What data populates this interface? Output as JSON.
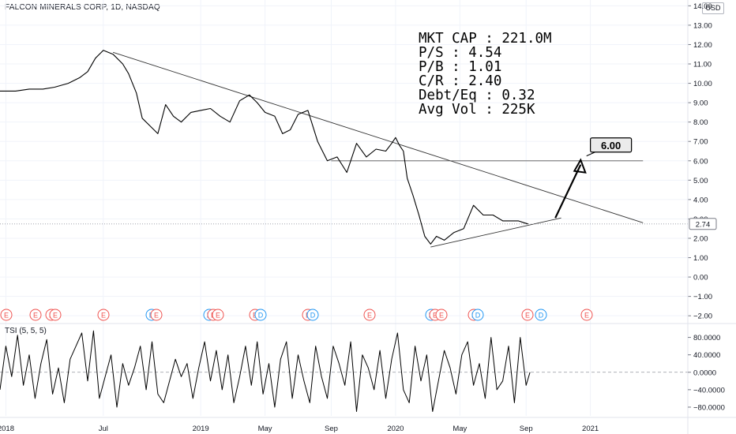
{
  "header": {
    "symbol_title": "FALCON MINERALS CORP, 1D, NASDAQ",
    "currency": "USD"
  },
  "stats": {
    "market_cap": "MKT CAP : 221.0M",
    "price_to_sales": "P/S :  4.54",
    "price_to_book": "P/B : 1.01",
    "current_ratio": "C/R : 2.40",
    "debt_to_equity": "Debt/Eq : 0.32",
    "avg_volume": "Avg Vol : 225K"
  },
  "target_label": "6.00",
  "last_price_label": "2.74",
  "events": {
    "earnings_marker": "E",
    "dividend_marker": "D"
  },
  "indicator": {
    "label": "TSI (5, 5, 5)"
  },
  "colors": {
    "price_line": "#000000",
    "grid": "#f0f3fa",
    "axis_text": "#131722",
    "earnings_red": "#ef5350",
    "dividend_blue": "#2196f3"
  },
  "chart_data": [
    {
      "type": "line",
      "title": "FALCON MINERALS CORP, 1D, NASDAQ",
      "y_scale": "linear",
      "ylim": [
        -2.4,
        14.3
      ],
      "y_ticks": [
        "14.00",
        "13.00",
        "12.00",
        "11.00",
        "10.00",
        "9.00",
        "8.00",
        "7.00",
        "6.00",
        "5.00",
        "4.00",
        "3.00",
        "2.00",
        "1.00",
        "0.00",
        "−1.00",
        "−2.00"
      ],
      "x_ticks": [
        "2018",
        "Jul",
        "2019",
        "May",
        "Sep",
        "2020",
        "May",
        "Sep",
        "2021"
      ],
      "x_tick_positions": [
        2018.0,
        2018.5,
        2019.0,
        2019.33,
        2019.67,
        2020.0,
        2020.33,
        2020.67,
        2021.0
      ],
      "xlim": [
        2017.97,
        2021.5
      ],
      "series": [
        {
          "x": [
            2017.97,
            2018.05,
            2018.12,
            2018.19,
            2018.25,
            2018.32,
            2018.38,
            2018.42,
            2018.46,
            2018.5,
            2018.55,
            2018.6,
            2018.63,
            2018.67,
            2018.7,
            2018.74,
            2018.78,
            2018.82,
            2018.86,
            2018.9,
            2018.95,
            2019.0,
            2019.05,
            2019.1,
            2019.15,
            2019.2,
            2019.25,
            2019.29,
            2019.33,
            2019.38,
            2019.42,
            2019.46,
            2019.5,
            2019.55,
            2019.6,
            2019.65,
            2019.7,
            2019.75,
            2019.8,
            2019.85,
            2019.9,
            2019.95,
            2019.98,
            2020.0,
            2020.02,
            2020.04,
            2020.06,
            2020.09,
            2020.12,
            2020.15,
            2020.18,
            2020.21,
            2020.25,
            2020.3,
            2020.35,
            2020.4,
            2020.45,
            2020.5,
            2020.55,
            2020.6,
            2020.63,
            2020.66,
            2020.68
          ],
          "y": [
            9.6,
            9.6,
            9.7,
            9.7,
            9.8,
            10.0,
            10.3,
            10.6,
            11.3,
            11.7,
            11.5,
            11.0,
            10.5,
            9.5,
            8.2,
            7.8,
            7.4,
            8.9,
            8.3,
            8.0,
            8.5,
            8.6,
            8.7,
            8.3,
            8.0,
            9.1,
            9.4,
            9.0,
            8.5,
            8.3,
            7.4,
            7.6,
            8.4,
            8.6,
            7.0,
            6.0,
            6.2,
            5.4,
            6.9,
            6.2,
            6.6,
            6.5,
            6.9,
            7.2,
            6.8,
            6.5,
            5.1,
            4.2,
            3.2,
            2.1,
            1.7,
            2.1,
            1.9,
            2.3,
            2.5,
            3.7,
            3.2,
            3.2,
            2.9,
            2.9,
            2.9,
            2.8,
            2.74
          ]
        }
      ],
      "annotations": {
        "target_price": 6.0,
        "last_price": 2.74,
        "target_label": "6.00",
        "last_price_label": "2.74"
      }
    },
    {
      "type": "line",
      "title": "TSI (5, 5, 5)",
      "ylim": [
        -100,
        110
      ],
      "y_ticks": [
        "80.0000",
        "40.0000",
        "0.0000",
        "−40.0000",
        "−80.0000"
      ],
      "series": [
        {
          "x": [
            2017.97,
            2018.0,
            2018.03,
            2018.06,
            2018.09,
            2018.12,
            2018.15,
            2018.18,
            2018.21,
            2018.24,
            2018.27,
            2018.3,
            2018.33,
            2018.36,
            2018.39,
            2018.42,
            2018.45,
            2018.48,
            2018.51,
            2018.54,
            2018.57,
            2018.6,
            2018.63,
            2018.66,
            2018.69,
            2018.72,
            2018.75,
            2018.78,
            2018.81,
            2018.84,
            2018.87,
            2018.9,
            2018.93,
            2018.96,
            2018.99,
            2019.02,
            2019.05,
            2019.08,
            2019.11,
            2019.14,
            2019.17,
            2019.2,
            2019.23,
            2019.26,
            2019.29,
            2019.32,
            2019.35,
            2019.38,
            2019.41,
            2019.44,
            2019.47,
            2019.5,
            2019.53,
            2019.56,
            2019.59,
            2019.62,
            2019.65,
            2019.68,
            2019.71,
            2019.74,
            2019.77,
            2019.8,
            2019.83,
            2019.86,
            2019.89,
            2019.92,
            2019.95,
            2019.98,
            2020.01,
            2020.04,
            2020.07,
            2020.1,
            2020.13,
            2020.16,
            2020.19,
            2020.22,
            2020.25,
            2020.28,
            2020.31,
            2020.34,
            2020.37,
            2020.4,
            2020.43,
            2020.46,
            2020.49,
            2020.52,
            2020.55,
            2020.58,
            2020.61,
            2020.64,
            2020.67,
            2020.69
          ],
          "y": [
            -40,
            60,
            -10,
            85,
            -30,
            40,
            -60,
            20,
            75,
            -50,
            10,
            -70,
            30,
            60,
            90,
            -20,
            95,
            -60,
            -10,
            40,
            -80,
            20,
            -30,
            10,
            60,
            -40,
            70,
            -50,
            -70,
            -20,
            30,
            -10,
            20,
            -60,
            10,
            70,
            -20,
            50,
            -40,
            40,
            -70,
            -10,
            60,
            -30,
            70,
            -50,
            20,
            -80,
            30,
            70,
            -60,
            40,
            -20,
            -70,
            60,
            -10,
            -60,
            60,
            20,
            -30,
            70,
            -90,
            40,
            10,
            -40,
            50,
            -60,
            30,
            90,
            -40,
            -70,
            60,
            -20,
            40,
            -90,
            -20,
            50,
            10,
            -50,
            40,
            70,
            -30,
            20,
            -60,
            80,
            -40,
            -20,
            60,
            -70,
            80,
            -30,
            0
          ]
        }
      ]
    }
  ]
}
